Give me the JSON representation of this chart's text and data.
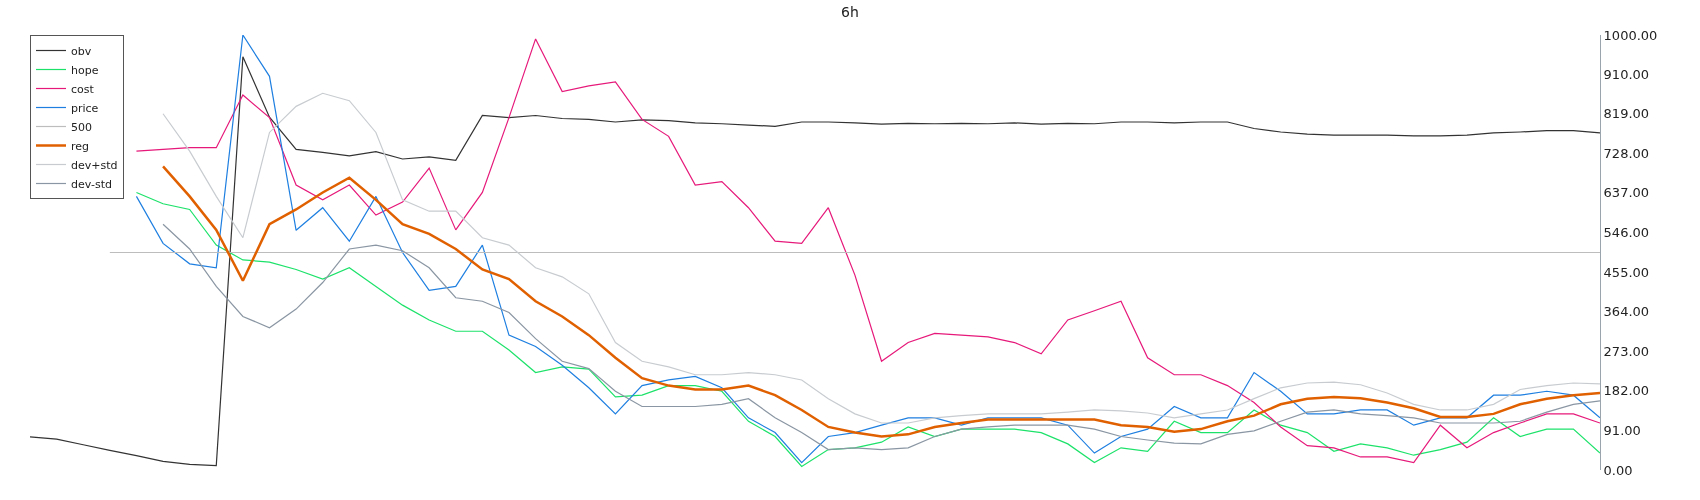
{
  "chart_data": {
    "type": "line",
    "title": "6h",
    "categories": [
      null,
      null,
      null,
      null,
      null,
      null,
      null,
      null,
      null,
      null,
      null,
      null,
      null,
      null,
      null,
      null,
      null,
      null,
      null,
      null,
      null,
      null,
      null,
      null,
      null,
      null,
      null,
      null,
      null,
      null,
      null,
      null,
      null,
      null,
      null,
      null,
      null,
      null,
      null,
      null,
      null,
      null,
      null,
      null,
      null,
      null,
      null,
      null,
      null,
      null,
      null,
      null,
      null,
      null,
      null,
      null,
      null,
      null,
      null,
      null
    ],
    "series": [
      {
        "name": "obv",
        "color": "#333333",
        "values": [
          76,
          71,
          58,
          45,
          33,
          20,
          13,
          10,
          950,
          811,
          737,
          730,
          722,
          732,
          715,
          720,
          712,
          815,
          810,
          815,
          808,
          806,
          800,
          805,
          803,
          798,
          796,
          793,
          790,
          800,
          800,
          798,
          795,
          797,
          796,
          797,
          796,
          798,
          795,
          797,
          796,
          800,
          800,
          798,
          800,
          800,
          785,
          777,
          772,
          770,
          770,
          770,
          768,
          768,
          770,
          775,
          777,
          780,
          780,
          775
        ]
      },
      {
        "name": "hope",
        "color": "#1de26a",
        "values": [
          null,
          null,
          null,
          null,
          638,
          612,
          599,
          517,
          483,
          478,
          461,
          439,
          465,
          422,
          379,
          345,
          319,
          319,
          276,
          224,
          237,
          232,
          168,
          172,
          194,
          194,
          181,
          112,
          77,
          8,
          47,
          51,
          64,
          99,
          77,
          94,
          94,
          94,
          86,
          60,
          17,
          51,
          43,
          112,
          86,
          86,
          138,
          103,
          86,
          43,
          60,
          51,
          34,
          47,
          64,
          120,
          77,
          94,
          94,
          39
        ]
      },
      {
        "name": "cost",
        "color": "#e6197a",
        "values": [
          null,
          null,
          null,
          null,
          733,
          737,
          741,
          741,
          862,
          810,
          655,
          621,
          655,
          586,
          616,
          694,
          552,
          638,
          810,
          991,
          870,
          883,
          892,
          806,
          767,
          655,
          663,
          603,
          526,
          521,
          603,
          448,
          250,
          293,
          314,
          310,
          306,
          293,
          267,
          345,
          366,
          388,
          258,
          219,
          219,
          194,
          155,
          99,
          56,
          51,
          30,
          30,
          17,
          103,
          51,
          86,
          108,
          129,
          129,
          108
        ]
      },
      {
        "name": "price",
        "color": "#1e7fe0",
        "values": [
          null,
          null,
          null,
          null,
          629,
          521,
          474,
          465,
          1000,
          905,
          551,
          603,
          526,
          629,
          500,
          413,
          422,
          517,
          310,
          284,
          241,
          189,
          129,
          194,
          207,
          215,
          189,
          120,
          86,
          17,
          77,
          86,
          103,
          120,
          120,
          103,
          120,
          120,
          120,
          103,
          39,
          77,
          94,
          146,
          120,
          120,
          224,
          181,
          129,
          129,
          138,
          138,
          103,
          120,
          120,
          172,
          172,
          181,
          172,
          120
        ]
      },
      {
        "name": "500",
        "color": "#bdbdbd",
        "values": [
          null,
          null,
          null,
          500,
          500,
          500,
          500,
          500,
          500,
          500,
          500,
          500,
          500,
          500,
          500,
          500,
          500,
          500,
          500,
          500,
          500,
          500,
          500,
          500,
          500,
          500,
          500,
          500,
          500,
          500,
          500,
          500,
          500,
          500,
          500,
          500,
          500,
          500,
          500,
          500,
          500,
          500,
          500,
          500,
          500,
          500,
          500,
          500,
          500,
          500,
          500,
          500,
          500,
          500,
          500,
          500,
          500,
          500,
          500,
          500
        ]
      },
      {
        "name": "reg",
        "color": "#e06000",
        "values": [
          null,
          null,
          null,
          null,
          null,
          698,
          629,
          552,
          435,
          565,
          599,
          638,
          672,
          621,
          565,
          543,
          508,
          461,
          439,
          388,
          353,
          310,
          258,
          211,
          194,
          185,
          185,
          194,
          172,
          138,
          99,
          86,
          77,
          82,
          99,
          108,
          116,
          116,
          116,
          116,
          116,
          103,
          99,
          88,
          94,
          112,
          125,
          151,
          164,
          168,
          165,
          155,
          142,
          122,
          122,
          129,
          151,
          164,
          172,
          177
        ]
      },
      {
        "name": "dev+std",
        "color": "#c8ccd0",
        "values": [
          null,
          null,
          null,
          null,
          null,
          819,
          733,
          629,
          534,
          776,
          836,
          866,
          849,
          776,
          621,
          595,
          595,
          534,
          517,
          465,
          444,
          405,
          293,
          250,
          237,
          219,
          219,
          224,
          219,
          207,
          164,
          129,
          108,
          108,
          120,
          125,
          129,
          129,
          129,
          133,
          138,
          136,
          131,
          120,
          129,
          138,
          164,
          189,
          200,
          202,
          196,
          177,
          151,
          138,
          138,
          151,
          185,
          194,
          200,
          198
        ]
      },
      {
        "name": "dev-std",
        "color": "#8a96a3",
        "values": [
          null,
          null,
          null,
          null,
          null,
          565,
          508,
          422,
          353,
          327,
          370,
          431,
          508,
          517,
          504,
          465,
          396,
          388,
          362,
          302,
          250,
          233,
          181,
          146,
          146,
          146,
          151,
          164,
          120,
          86,
          47,
          51,
          47,
          51,
          77,
          94,
          99,
          103,
          103,
          103,
          94,
          77,
          69,
          62,
          60,
          82,
          90,
          112,
          133,
          138,
          129,
          125,
          120,
          108,
          108,
          108,
          112,
          133,
          151,
          159
        ]
      }
    ],
    "ylim": [
      0,
      1000
    ],
    "yticks": [
      {
        "value": 0,
        "label": "0.00"
      },
      {
        "value": 91,
        "label": "91.00"
      },
      {
        "value": 182,
        "label": "182.00"
      },
      {
        "value": 273,
        "label": "273.00"
      },
      {
        "value": 364,
        "label": "364.00"
      },
      {
        "value": 455,
        "label": "455.00"
      },
      {
        "value": 546,
        "label": "546.00"
      },
      {
        "value": 637,
        "label": "637.00"
      },
      {
        "value": 728,
        "label": "728.00"
      },
      {
        "value": 819,
        "label": "819.00"
      },
      {
        "value": 910,
        "label": "910.00"
      },
      {
        "value": 1000,
        "label": "1000.00"
      }
    ],
    "tick_labels": "y",
    "legend": "top left",
    "marker": "none",
    "line_style": "solid"
  }
}
